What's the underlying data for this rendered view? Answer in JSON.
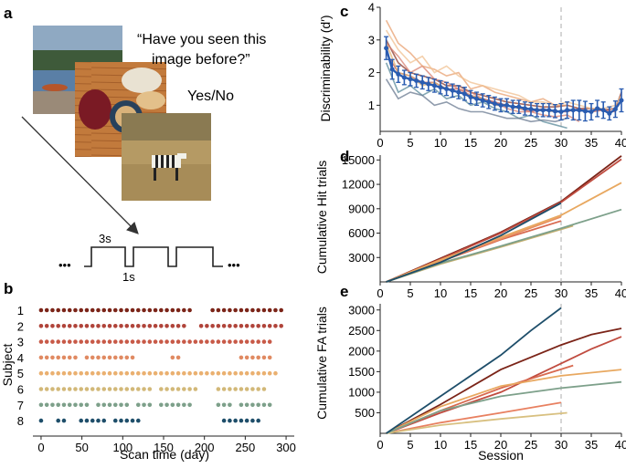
{
  "panels": {
    "a": "a",
    "b": "b",
    "c": "c",
    "d": "d",
    "e": "e"
  },
  "panel_a": {
    "question_line1": "“Have you seen this",
    "question_line2": "image before?”",
    "response": "Yes/No",
    "duration_on": "3s",
    "duration_off": "1s",
    "ellipsis": "•••",
    "images": [
      "lake-photo",
      "coffee-table-photo",
      "zebra-photo"
    ]
  },
  "chart_data": [
    {
      "id": "b",
      "type": "scatter",
      "title": "",
      "xlabel": "Scan time (day)",
      "ylabel": "Subject",
      "xlim": [
        -10,
        310
      ],
      "xticks": [
        0,
        50,
        100,
        150,
        200,
        250,
        300
      ],
      "subjects": [
        "1",
        "2",
        "3",
        "4",
        "5",
        "6",
        "7",
        "8"
      ],
      "colors": [
        "#7b2418",
        "#b0443a",
        "#c85a48",
        "#e08a62",
        "#eab070",
        "#d2b878",
        "#7da08a",
        "#1e4e6a"
      ],
      "series": [
        {
          "name": "1",
          "days": [
            0,
            7,
            14,
            21,
            28,
            35,
            42,
            49,
            56,
            63,
            70,
            77,
            84,
            91,
            98,
            105,
            112,
            119,
            126,
            133,
            140,
            147,
            154,
            161,
            168,
            175,
            182,
            210,
            217,
            224,
            231,
            238,
            245,
            252,
            259,
            266,
            273,
            280,
            287,
            294
          ]
        },
        {
          "name": "2",
          "days": [
            0,
            7,
            14,
            21,
            28,
            35,
            42,
            49,
            56,
            63,
            70,
            77,
            84,
            91,
            98,
            105,
            112,
            119,
            126,
            133,
            140,
            147,
            154,
            161,
            168,
            175,
            196,
            203,
            210,
            217,
            224,
            231,
            238,
            245,
            252,
            259,
            266,
            273,
            280,
            287,
            294
          ]
        },
        {
          "name": "3",
          "days": [
            0,
            7,
            14,
            21,
            28,
            35,
            42,
            49,
            56,
            63,
            70,
            77,
            84,
            91,
            98,
            105,
            112,
            119,
            126,
            133,
            140,
            147,
            154,
            161,
            168,
            175,
            182,
            189,
            196,
            203,
            210,
            217,
            224,
            231,
            238,
            245,
            252,
            259,
            266,
            273,
            280
          ]
        },
        {
          "name": "4",
          "days": [
            0,
            7,
            14,
            21,
            28,
            35,
            42,
            56,
            63,
            70,
            77,
            84,
            91,
            98,
            105,
            112,
            161,
            168,
            245,
            252,
            259,
            266,
            273,
            280
          ]
        },
        {
          "name": "5",
          "days": [
            0,
            7,
            14,
            21,
            28,
            35,
            42,
            49,
            56,
            63,
            70,
            77,
            84,
            91,
            98,
            105,
            112,
            119,
            126,
            133,
            140,
            147,
            154,
            161,
            168,
            175,
            182,
            189,
            196,
            203,
            210,
            217,
            224,
            231,
            238,
            245,
            252,
            259,
            266,
            273,
            280,
            287
          ]
        },
        {
          "name": "6",
          "days": [
            0,
            7,
            14,
            21,
            28,
            35,
            42,
            49,
            56,
            63,
            70,
            77,
            84,
            91,
            98,
            105,
            112,
            119,
            126,
            133,
            147,
            154,
            161,
            168,
            175,
            182,
            189,
            217,
            224,
            231,
            238,
            245,
            252,
            259,
            266,
            273
          ]
        },
        {
          "name": "7",
          "days": [
            0,
            7,
            14,
            21,
            28,
            35,
            42,
            49,
            56,
            70,
            77,
            84,
            91,
            98,
            105,
            119,
            126,
            133,
            147,
            154,
            161,
            168,
            175,
            182,
            217,
            224,
            231,
            245,
            252,
            259,
            266,
            273,
            280
          ]
        },
        {
          "name": "8",
          "days": [
            0,
            21,
            28,
            49,
            56,
            63,
            70,
            77,
            91,
            98,
            105,
            112,
            119,
            224,
            231,
            238,
            245,
            252,
            259,
            266
          ]
        }
      ]
    },
    {
      "id": "c",
      "type": "line",
      "xlabel": "",
      "ylabel": "Discriminability (d′)",
      "xlim": [
        0,
        40
      ],
      "ylim": [
        0.2,
        4
      ],
      "xticks": [
        0,
        5,
        10,
        15,
        20,
        25,
        30,
        35,
        40
      ],
      "yticks": [
        1,
        2,
        3,
        4
      ],
      "vline": 30,
      "mean": {
        "x": [
          1,
          2,
          3,
          4,
          5,
          6,
          7,
          8,
          9,
          10,
          11,
          12,
          13,
          14,
          15,
          16,
          17,
          18,
          19,
          20,
          21,
          22,
          23,
          24,
          25,
          26,
          27,
          28,
          29,
          30,
          31,
          32,
          33,
          34,
          35,
          36,
          37,
          38,
          39,
          40
        ],
        "y": [
          2.75,
          2.1,
          1.95,
          1.85,
          1.8,
          1.75,
          1.7,
          1.65,
          1.6,
          1.55,
          1.5,
          1.45,
          1.4,
          1.35,
          1.25,
          1.2,
          1.15,
          1.1,
          1.05,
          1.0,
          1.0,
          0.95,
          0.95,
          0.9,
          0.88,
          0.85,
          0.85,
          0.85,
          0.82,
          0.8,
          0.85,
          0.85,
          0.85,
          0.82,
          0.8,
          0.9,
          0.85,
          0.75,
          0.88,
          1.15
        ],
        "err": [
          0.35,
          0.3,
          0.25,
          0.22,
          0.2,
          0.2,
          0.2,
          0.2,
          0.2,
          0.2,
          0.2,
          0.2,
          0.2,
          0.2,
          0.2,
          0.2,
          0.2,
          0.2,
          0.2,
          0.2,
          0.2,
          0.2,
          0.2,
          0.2,
          0.2,
          0.2,
          0.2,
          0.2,
          0.2,
          0.25,
          0.25,
          0.3,
          0.3,
          0.3,
          0.25,
          0.25,
          0.25,
          0.2,
          0.25,
          0.35
        ],
        "color": "#2a5cb0"
      },
      "series": [
        {
          "name": "1",
          "color": "#8b3a2c",
          "x": [
            1,
            3,
            5,
            7,
            9,
            11,
            13,
            15,
            17,
            19,
            21,
            23,
            25,
            27,
            29,
            31,
            33,
            35,
            37,
            39,
            40
          ],
          "y": [
            3.0,
            2.3,
            2.0,
            1.9,
            1.8,
            1.6,
            1.6,
            1.4,
            1.3,
            1.2,
            1.1,
            1.05,
            1.0,
            0.95,
            0.95,
            1.0,
            0.9,
            0.9,
            0.85,
            0.9,
            1.4
          ]
        },
        {
          "name": "2",
          "color": "#c0605a",
          "x": [
            1,
            3,
            5,
            7,
            9,
            11,
            13,
            15,
            17,
            19,
            21,
            23,
            25,
            27,
            29,
            31,
            33,
            35,
            37,
            39
          ],
          "y": [
            2.6,
            2.0,
            1.9,
            1.7,
            1.7,
            1.5,
            1.5,
            1.3,
            1.2,
            1.1,
            1.0,
            0.9,
            0.8,
            0.9,
            0.8,
            0.8,
            0.9,
            0.8,
            0.85,
            0.8
          ]
        },
        {
          "name": "3",
          "color": "#d88070",
          "x": [
            1,
            3,
            5,
            7,
            9,
            11,
            13,
            15,
            17,
            19,
            21,
            23,
            25,
            27,
            29,
            31,
            33
          ],
          "y": [
            2.9,
            2.5,
            2.0,
            2.2,
            1.8,
            1.7,
            1.5,
            1.4,
            1.2,
            1.1,
            0.9,
            0.8,
            0.8,
            0.7,
            0.65,
            0.7,
            0.5
          ]
        },
        {
          "name": "4",
          "color": "#e8a070",
          "x": [
            1,
            3,
            5,
            7,
            9,
            11,
            13,
            15,
            17,
            19,
            21,
            23,
            25,
            27,
            29,
            31
          ],
          "y": [
            3.6,
            2.9,
            2.6,
            2.2,
            2.1,
            1.9,
            2.0,
            1.5,
            1.6,
            1.4,
            1.3,
            1.2,
            1.1,
            1.2,
            1.0,
            1.0
          ]
        },
        {
          "name": "5",
          "color": "#f0c090",
          "x": [
            1,
            3,
            5,
            7,
            9,
            11,
            13,
            15,
            17,
            19,
            21,
            23,
            25,
            27,
            29,
            31,
            33,
            35,
            37,
            39,
            40
          ],
          "y": [
            3.3,
            2.7,
            2.3,
            2.5,
            2.0,
            2.2,
            1.9,
            1.7,
            1.6,
            1.5,
            1.4,
            1.3,
            1.1,
            1.1,
            1.0,
            1.1,
            1.0,
            0.9,
            0.9,
            1.0,
            1.3
          ]
        },
        {
          "name": "6",
          "color": "#e0b070",
          "x": [
            1,
            3,
            5,
            7,
            9,
            11,
            13,
            15,
            17,
            19,
            21,
            23,
            25,
            27,
            29
          ],
          "y": [
            2.9,
            2.0,
            1.9,
            1.6,
            1.7,
            1.5,
            1.4,
            1.3,
            1.2,
            1.0,
            1.0,
            0.9,
            0.9,
            0.85,
            0.8
          ]
        },
        {
          "name": "7",
          "color": "#5a8a9a",
          "x": [
            1,
            3,
            5,
            7,
            9,
            11,
            13,
            15,
            17,
            19,
            21,
            23,
            25,
            27,
            29,
            31
          ],
          "y": [
            2.3,
            1.4,
            1.6,
            1.3,
            1.5,
            1.2,
            1.3,
            1.0,
            1.1,
            0.9,
            0.8,
            0.6,
            0.7,
            0.5,
            0.4,
            0.3
          ]
        },
        {
          "name": "8",
          "color": "#6a7a90",
          "x": [
            1,
            3,
            5,
            7,
            9,
            11,
            13,
            15,
            17,
            19,
            21,
            23,
            25,
            27,
            29,
            31
          ],
          "y": [
            1.8,
            1.2,
            1.4,
            1.3,
            1.0,
            1.1,
            0.9,
            0.8,
            0.8,
            0.7,
            0.6,
            0.6,
            0.5,
            0.55,
            0.5,
            0.6
          ]
        }
      ]
    },
    {
      "id": "d",
      "type": "line",
      "xlabel": "",
      "ylabel": "Cumulative Hit trials",
      "xlim": [
        0,
        40
      ],
      "ylim": [
        0,
        15600
      ],
      "xticks": [
        0,
        5,
        10,
        15,
        20,
        25,
        30,
        35,
        40
      ],
      "yticks": [
        3000,
        6000,
        9000,
        12000,
        15000
      ],
      "vline": 30,
      "series": [
        {
          "name": "1",
          "color": "#7b2418",
          "x": [
            1,
            10,
            20,
            30,
            40
          ],
          "y": [
            0,
            2900,
            6100,
            9900,
            15500
          ]
        },
        {
          "name": "2",
          "color": "#c04c40",
          "x": [
            1,
            10,
            20,
            30,
            40
          ],
          "y": [
            0,
            2800,
            6000,
            9800,
            15100
          ]
        },
        {
          "name": "3",
          "color": "#d86a50",
          "x": [
            1,
            10,
            20,
            30
          ],
          "y": [
            0,
            2500,
            5200,
            7500
          ]
        },
        {
          "name": "4",
          "color": "#e89060",
          "x": [
            1,
            10,
            20,
            30
          ],
          "y": [
            0,
            2600,
            5300,
            8000
          ]
        },
        {
          "name": "5",
          "color": "#e8a860",
          "x": [
            1,
            10,
            20,
            30,
            40
          ],
          "y": [
            0,
            2700,
            5500,
            8200,
            12200
          ]
        },
        {
          "name": "6",
          "color": "#c8b070",
          "x": [
            1,
            10,
            20,
            32
          ],
          "y": [
            0,
            2200,
            4300,
            6900
          ]
        },
        {
          "name": "7",
          "color": "#7da08a",
          "x": [
            1,
            10,
            20,
            30,
            40
          ],
          "y": [
            0,
            2300,
            4400,
            6600,
            8900
          ]
        },
        {
          "name": "8",
          "color": "#1e4e6a",
          "x": [
            1,
            10,
            20,
            30
          ],
          "y": [
            0,
            2400,
            5700,
            9700
          ]
        }
      ]
    },
    {
      "id": "e",
      "type": "line",
      "xlabel": "Session",
      "ylabel": "Cumulative FA trials",
      "xlim": [
        0,
        40
      ],
      "ylim": [
        0,
        3150
      ],
      "xticks": [
        0,
        5,
        10,
        15,
        20,
        25,
        30,
        35,
        40
      ],
      "yticks": [
        500,
        1000,
        1500,
        2000,
        2500,
        3000
      ],
      "vline": 30,
      "series": [
        {
          "name": "1",
          "color": "#7b2418",
          "x": [
            1,
            10,
            20,
            30,
            35,
            40
          ],
          "y": [
            0,
            700,
            1550,
            2150,
            2400,
            2550
          ]
        },
        {
          "name": "2",
          "color": "#c04c40",
          "x": [
            1,
            10,
            20,
            30,
            35,
            40
          ],
          "y": [
            0,
            500,
            1000,
            1700,
            2050,
            2350
          ]
        },
        {
          "name": "3",
          "color": "#d86a50",
          "x": [
            1,
            10,
            20,
            32
          ],
          "y": [
            0,
            550,
            1100,
            1650
          ]
        },
        {
          "name": "4",
          "color": "#e88060",
          "x": [
            1,
            10,
            20,
            30
          ],
          "y": [
            0,
            260,
            500,
            750
          ]
        },
        {
          "name": "5",
          "color": "#e8a860",
          "x": [
            1,
            10,
            20,
            30,
            40
          ],
          "y": [
            0,
            650,
            1150,
            1400,
            1550
          ]
        },
        {
          "name": "6",
          "color": "#d8c080",
          "x": [
            1,
            10,
            20,
            31
          ],
          "y": [
            0,
            200,
            350,
            500
          ]
        },
        {
          "name": "7",
          "color": "#7da08a",
          "x": [
            1,
            10,
            20,
            30,
            40
          ],
          "y": [
            0,
            550,
            900,
            1100,
            1250
          ]
        },
        {
          "name": "8",
          "color": "#1e4e6a",
          "x": [
            1,
            10,
            20,
            25,
            30
          ],
          "y": [
            0,
            900,
            1900,
            2500,
            3050
          ]
        }
      ]
    }
  ]
}
